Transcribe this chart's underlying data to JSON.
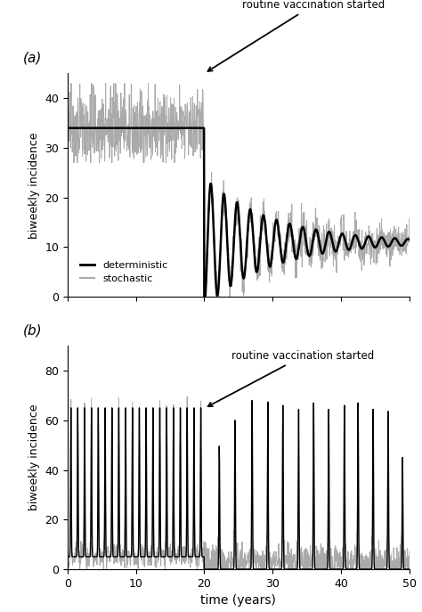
{
  "xlabel": "time (years)",
  "ylabel": "biweekly incidence",
  "annotation_text": "routine vaccination started",
  "vaccination_year": 20,
  "xlim": [
    0,
    50
  ],
  "ylim_a": [
    0,
    45
  ],
  "ylim_b": [
    0,
    90
  ],
  "yticks_a": [
    0,
    10,
    20,
    30,
    40
  ],
  "yticks_b": [
    0,
    20,
    40,
    60,
    80
  ],
  "xticks": [
    0,
    10,
    20,
    30,
    40,
    50
  ],
  "det_color": "#000000",
  "stoch_color": "#aaaaaa",
  "det_lw_a": 1.8,
  "stoch_lw_a": 0.7,
  "det_lw_b": 1.0,
  "stoch_lw_b": 0.7,
  "legend_labels": [
    "deterministic",
    "stochastic"
  ],
  "figsize": [
    4.74,
    6.87
  ],
  "dpi": 100
}
